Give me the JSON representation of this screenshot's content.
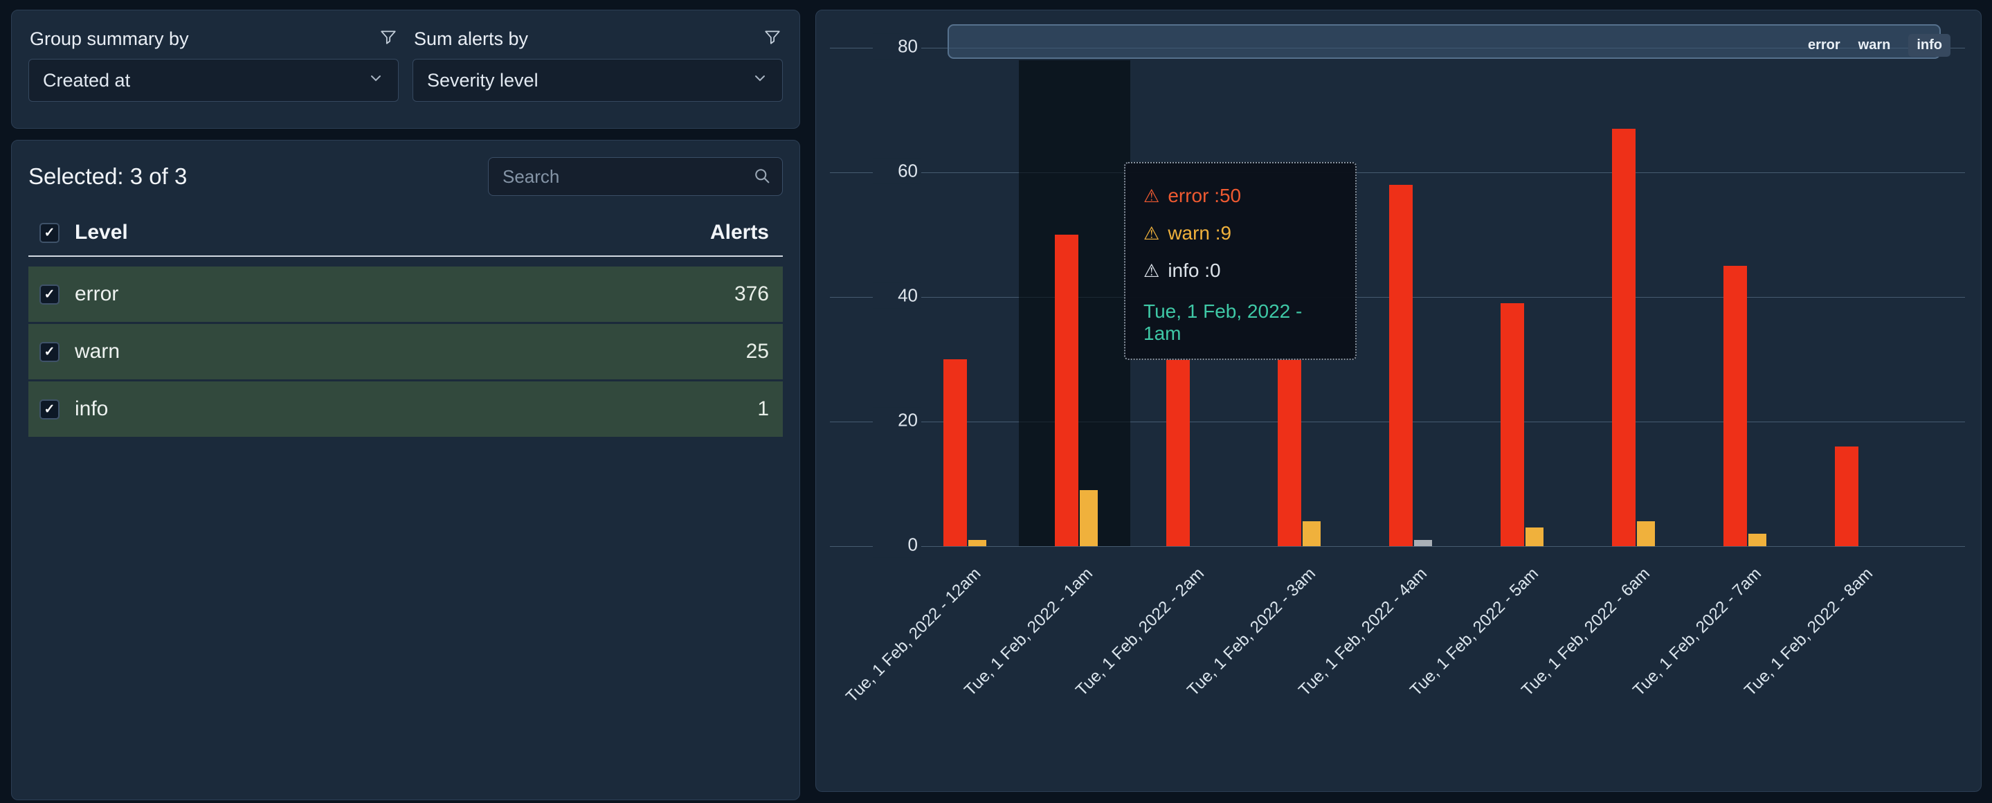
{
  "grouping_panel": {
    "group_by_label": "Group summary by",
    "group_by_value": "Created at",
    "sum_by_label": "Sum alerts by",
    "sum_by_value": "Severity level"
  },
  "selection_panel": {
    "selected_summary": "Selected: 3 of 3",
    "search_placeholder": "Search",
    "columns": {
      "level": "Level",
      "alerts": "Alerts"
    },
    "rows": [
      {
        "level": "error",
        "alerts": "376"
      },
      {
        "level": "warn",
        "alerts": "25"
      },
      {
        "level": "info",
        "alerts": "1"
      }
    ]
  },
  "chart_data": {
    "type": "bar",
    "title": "",
    "xlabel": "",
    "ylabel": "",
    "categories": [
      "Tue, 1 Feb, 2022 - 12am",
      "Tue, 1 Feb, 2022 - 1am",
      "Tue, 1 Feb, 2022 - 2am",
      "Tue, 1 Feb, 2022 - 3am",
      "Tue, 1 Feb, 2022 - 4am",
      "Tue, 1 Feb, 2022 - 5am",
      "Tue, 1 Feb, 2022 - 6am",
      "Tue, 1 Feb, 2022 - 7am",
      "Tue, 1 Feb, 2022 - 8am"
    ],
    "series": [
      {
        "name": "error",
        "color": "#ee3018",
        "values": [
          30,
          50,
          30,
          30,
          58,
          39,
          67,
          45,
          16
        ]
      },
      {
        "name": "warn",
        "color": "#f0b13c",
        "values": [
          1,
          9,
          0,
          4,
          0,
          3,
          4,
          2,
          0
        ]
      },
      {
        "name": "info",
        "color": "#a9b0b7",
        "values": [
          0,
          0,
          0,
          0,
          1,
          0,
          0,
          0,
          0
        ]
      }
    ],
    "ylim": [
      0,
      80
    ],
    "yticks": [
      0,
      20,
      40,
      60,
      80
    ],
    "legend": [
      "error",
      "warn",
      "info"
    ],
    "legend_position": "top-right",
    "grid": true,
    "highlighted_category_index": 1
  },
  "tooltip": {
    "lines": [
      {
        "icon": "warning-triangle",
        "text": "error :50",
        "color": "#ef5a31"
      },
      {
        "icon": "warning-triangle",
        "text": "warn :9",
        "color": "#f0b13c"
      },
      {
        "icon": "warning-triangle",
        "text": "info :0",
        "color": "#dde3ea"
      }
    ],
    "date": "Tue, 1 Feb, 2022 - 1am",
    "date_color": "#3fc8a6"
  }
}
